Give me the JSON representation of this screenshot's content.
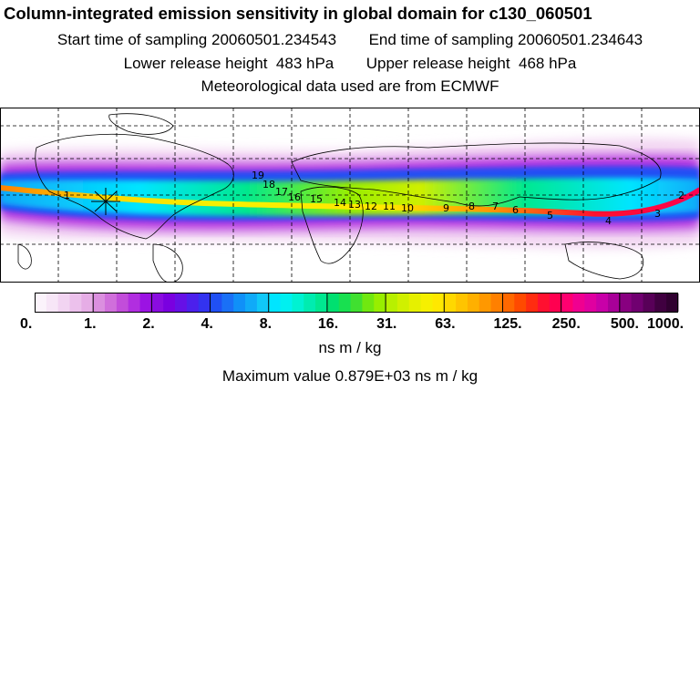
{
  "header": {
    "title": "Column-integrated emission sensitivity in global domain for c130_060501",
    "start_label": "Start time of sampling",
    "start_value": "20060501.234543",
    "end_label": "End time of sampling",
    "end_value": "20060501.234643",
    "lower_label": "Lower release height",
    "lower_value": "483 hPa",
    "upper_label": "Upper release height",
    "upper_value": "468 hPa",
    "met_text": "Meteorological data used are from ECMWF"
  },
  "map": {
    "projection": "global lat-lon",
    "gridlines": "dashed",
    "release_marker": "star",
    "day_labels": [
      "19",
      "18",
      "17",
      "16",
      "15",
      "14",
      "13",
      "12",
      "11",
      "10",
      "9",
      "8",
      "7",
      "6",
      "5",
      "4",
      "3",
      "2",
      "1"
    ]
  },
  "legend": {
    "tick_labels": [
      "0.",
      "1.",
      "2.",
      "4.",
      "8.",
      "16.",
      "31.",
      "63.",
      "125.",
      "250.",
      "500.",
      "1000."
    ],
    "colors": [
      "#fbf3fb",
      "#f7e6f7",
      "#f2d4f2",
      "#ecc1ec",
      "#e6ade6",
      "#db8fdf",
      "#d06fdb",
      "#c24dda",
      "#b12ee0",
      "#9b13e3",
      "#8a0ce0",
      "#7a00e0",
      "#6610e6",
      "#4c20ec",
      "#3333f0",
      "#2050f4",
      "#1a70f6",
      "#1090f8",
      "#10aaf8",
      "#10c8f8",
      "#00e5ff",
      "#00f0f0",
      "#00f2d2",
      "#00ecb0",
      "#00e890",
      "#00e070",
      "#18e050",
      "#40e030",
      "#70e810",
      "#98ee00",
      "#b8f000",
      "#d0f000",
      "#e6f000",
      "#f6f000",
      "#ffe800",
      "#ffd800",
      "#ffc400",
      "#ffb000",
      "#ff9800",
      "#ff8000",
      "#ff6800",
      "#ff4a00",
      "#ff2c10",
      "#ff1030",
      "#ff0050",
      "#ff0070",
      "#f00090",
      "#e000a0",
      "#c800a8",
      "#a80098",
      "#880080",
      "#700070",
      "#580058",
      "#400040",
      "#300030"
    ],
    "units": "ns m / kg",
    "max_label": "Maximum value  0.879E+03 ns m / kg"
  }
}
